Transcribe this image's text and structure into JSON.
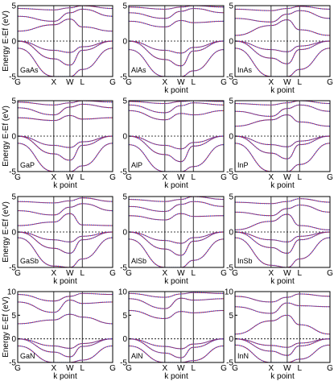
{
  "chart_data": [
    {
      "type": "line",
      "panel_label": "GaAs",
      "xlabel": "",
      "ylabel": "Energy E-Ef (eV)",
      "ylim": [
        -5,
        5
      ],
      "yticks": [
        "-5",
        "0",
        "5"
      ],
      "kpoints": [
        "G",
        "X",
        "W",
        "L",
        "G"
      ],
      "kbreaks": [
        0,
        0.38,
        0.55,
        0.68,
        1
      ],
      "series": [
        {
          "style": "dotted",
          "color": "#2050ff"
        },
        {
          "style": "solid",
          "color": "#cc2020"
        }
      ],
      "bands": [
        {
          "y": [
            -1,
            -5,
            -5,
            -4,
            -1
          ]
        },
        {
          "y": [
            0,
            -2.5,
            -3.4,
            -1.3,
            0
          ]
        },
        {
          "y": [
            0,
            -1.3,
            -1.6,
            -0.8,
            0
          ]
        },
        {
          "y": [
            1.4,
            2.3,
            3.1,
            2.0,
            1.4
          ]
        },
        {
          "y": [
            3.5,
            2.8,
            4.0,
            4.5,
            3.5
          ]
        },
        {
          "y": [
            4.6,
            4.4,
            4.7,
            5.0,
            4.6
          ]
        }
      ]
    },
    {
      "type": "line",
      "panel_label": "AlAs",
      "xlabel": "k point",
      "ylabel": "",
      "ylim": [
        -5,
        5
      ],
      "yticks": [
        "-5",
        "0",
        "5"
      ],
      "kpoints": [
        "G",
        "X",
        "W",
        "L",
        "G"
      ],
      "kbreaks": [
        0,
        0.38,
        0.55,
        0.68,
        1
      ],
      "series": [
        {
          "style": "dotted",
          "color": "#2050ff"
        },
        {
          "style": "solid",
          "color": "#cc2020"
        }
      ],
      "bands": [
        {
          "y": [
            -1.2,
            -5,
            -5,
            -4.2,
            -1.2
          ]
        },
        {
          "y": [
            0,
            -2.6,
            -3.5,
            -1.4,
            0
          ]
        },
        {
          "y": [
            0,
            -1.3,
            -1.7,
            -0.9,
            0
          ]
        },
        {
          "y": [
            2.8,
            2.0,
            2.9,
            2.6,
            2.8
          ]
        },
        {
          "y": [
            4.0,
            3.2,
            4.2,
            4.6,
            4.0
          ]
        },
        {
          "y": [
            4.8,
            4.5,
            4.8,
            5.0,
            4.8
          ]
        }
      ]
    },
    {
      "type": "line",
      "panel_label": "InAs",
      "xlabel": "k point",
      "ylabel": "",
      "ylim": [
        -5,
        5
      ],
      "yticks": [
        "-5",
        "0",
        "5"
      ],
      "kpoints": [
        "G",
        "X",
        "W",
        "L",
        "G"
      ],
      "kbreaks": [
        0,
        0.38,
        0.55,
        0.68,
        1
      ],
      "series": [
        {
          "style": "dotted",
          "color": "#2050ff"
        },
        {
          "style": "solid",
          "color": "#cc2020"
        }
      ],
      "bands": [
        {
          "y": [
            -1,
            -5,
            -5,
            -4,
            -1
          ]
        },
        {
          "y": [
            0,
            -2.4,
            -3.2,
            -1.2,
            0
          ]
        },
        {
          "y": [
            0,
            -1.2,
            -1.5,
            -0.7,
            0
          ]
        },
        {
          "y": [
            0.8,
            2.2,
            3.0,
            1.6,
            0.8
          ]
        },
        {
          "y": [
            3.2,
            2.7,
            3.8,
            4.3,
            3.2
          ]
        },
        {
          "y": [
            4.5,
            4.3,
            4.6,
            4.9,
            4.5
          ]
        }
      ]
    },
    {
      "type": "line",
      "panel_label": "GaP",
      "xlabel": "k point",
      "ylabel": "Energy E-Ef (eV)",
      "ylim": [
        -5,
        5
      ],
      "yticks": [
        "-5",
        "0",
        "5"
      ],
      "kpoints": [
        "G",
        "X",
        "W",
        "L",
        "G"
      ],
      "kbreaks": [
        0,
        0.38,
        0.55,
        0.68,
        1
      ],
      "series": [
        {
          "style": "dotted",
          "color": "#2050ff"
        },
        {
          "style": "solid",
          "color": "#cc2020"
        }
      ],
      "bands": [
        {
          "y": [
            -1,
            -5,
            -5,
            -4.2,
            -1
          ]
        },
        {
          "y": [
            0,
            -2.5,
            -3.4,
            -1.3,
            0
          ]
        },
        {
          "y": [
            0,
            -1.3,
            -1.6,
            -0.8,
            0
          ]
        },
        {
          "y": [
            2.6,
            2.2,
            2.9,
            2.4,
            2.6
          ]
        },
        {
          "y": [
            4.0,
            3.0,
            4.1,
            4.5,
            4.0
          ]
        },
        {
          "y": [
            4.8,
            4.4,
            4.7,
            5.0,
            4.8
          ]
        }
      ]
    },
    {
      "type": "line",
      "panel_label": "AlP",
      "xlabel": "k point",
      "ylabel": "",
      "ylim": [
        -5,
        5
      ],
      "yticks": [
        "-5",
        "0",
        "5"
      ],
      "kpoints": [
        "G",
        "X",
        "W",
        "L",
        "G"
      ],
      "kbreaks": [
        0,
        0.38,
        0.55,
        0.68,
        1
      ],
      "series": [
        {
          "style": "dotted",
          "color": "#2050ff"
        },
        {
          "style": "solid",
          "color": "#cc2020"
        }
      ],
      "bands": [
        {
          "y": [
            -1.2,
            -5,
            -5,
            -4.3,
            -1.2
          ]
        },
        {
          "y": [
            0,
            -2.6,
            -3.6,
            -1.4,
            0
          ]
        },
        {
          "y": [
            0,
            -1.3,
            -1.8,
            -0.9,
            0
          ]
        },
        {
          "y": [
            3.6,
            2.3,
            3.2,
            3.0,
            3.6
          ]
        },
        {
          "y": [
            4.4,
            3.3,
            4.3,
            4.7,
            4.4
          ]
        },
        {
          "y": [
            4.9,
            4.6,
            4.9,
            5.0,
            4.9
          ]
        }
      ]
    },
    {
      "type": "line",
      "panel_label": "InP",
      "xlabel": "k point",
      "ylabel": "",
      "ylim": [
        -5,
        5
      ],
      "yticks": [
        "-5",
        "0",
        "5"
      ],
      "kpoints": [
        "G",
        "X",
        "W",
        "L",
        "G"
      ],
      "kbreaks": [
        0,
        0.38,
        0.55,
        0.68,
        1
      ],
      "series": [
        {
          "style": "dotted",
          "color": "#2050ff"
        },
        {
          "style": "solid",
          "color": "#cc2020"
        }
      ],
      "bands": [
        {
          "y": [
            -1,
            -5,
            -5,
            -4,
            -1
          ]
        },
        {
          "y": [
            0,
            -2.4,
            -3.2,
            -1.2,
            0
          ]
        },
        {
          "y": [
            0,
            -1.2,
            -1.5,
            -0.7,
            0
          ]
        },
        {
          "y": [
            1.4,
            2.3,
            3.0,
            2.0,
            1.4
          ]
        },
        {
          "y": [
            3.5,
            2.8,
            3.9,
            4.4,
            3.5
          ]
        },
        {
          "y": [
            4.6,
            4.4,
            4.7,
            5.0,
            4.6
          ]
        }
      ]
    },
    {
      "type": "line",
      "panel_label": "GaSb",
      "xlabel": "k point",
      "ylabel": "Energy E-Ef (eV)",
      "ylim": [
        -5,
        5
      ],
      "yticks": [
        "-5",
        "0",
        "5"
      ],
      "kpoints": [
        "G",
        "X",
        "W",
        "L",
        "G"
      ],
      "kbreaks": [
        0,
        0.38,
        0.55,
        0.68,
        1
      ],
      "series": [
        {
          "style": "dotted",
          "color": "#2050ff"
        },
        {
          "style": "solid",
          "color": "#cc2020"
        }
      ],
      "bands": [
        {
          "y": [
            -0.8,
            -4.8,
            -5,
            -3.8,
            -0.8
          ]
        },
        {
          "y": [
            0,
            -2.3,
            -3.0,
            -1.1,
            0
          ]
        },
        {
          "y": [
            0,
            -1.1,
            -1.4,
            -0.6,
            0
          ]
        },
        {
          "y": [
            0.9,
            1.4,
            2.6,
            1.0,
            0.9
          ]
        },
        {
          "y": [
            3.0,
            2.4,
            3.5,
            4.0,
            3.0
          ]
        },
        {
          "y": [
            4.3,
            4.1,
            4.4,
            4.8,
            4.3
          ]
        }
      ]
    },
    {
      "type": "line",
      "panel_label": "AlSb",
      "xlabel": "k point",
      "ylabel": "",
      "ylim": [
        -5,
        5
      ],
      "yticks": [
        "-5",
        "0",
        "5"
      ],
      "kpoints": [
        "G",
        "X",
        "W",
        "L",
        "G"
      ],
      "kbreaks": [
        0,
        0.38,
        0.55,
        0.68,
        1
      ],
      "series": [
        {
          "style": "dotted",
          "color": "#2050ff"
        },
        {
          "style": "solid",
          "color": "#cc2020"
        }
      ],
      "bands": [
        {
          "y": [
            -1,
            -5,
            -5,
            -4,
            -1
          ]
        },
        {
          "y": [
            0,
            -2.4,
            -3.3,
            -1.3,
            0
          ]
        },
        {
          "y": [
            0,
            -1.2,
            -1.6,
            -0.8,
            0
          ]
        },
        {
          "y": [
            2.3,
            1.7,
            2.6,
            2.2,
            2.3
          ]
        },
        {
          "y": [
            3.6,
            2.9,
            3.9,
            4.3,
            3.6
          ]
        },
        {
          "y": [
            4.6,
            4.3,
            4.6,
            5.0,
            4.6
          ]
        }
      ]
    },
    {
      "type": "line",
      "panel_label": "InSb",
      "xlabel": "k point",
      "ylabel": "",
      "ylim": [
        -5,
        5
      ],
      "yticks": [
        "-5",
        "0",
        "5"
      ],
      "kpoints": [
        "G",
        "X",
        "W",
        "L",
        "G"
      ],
      "kbreaks": [
        0,
        0.38,
        0.55,
        0.68,
        1
      ],
      "series": [
        {
          "style": "dotted",
          "color": "#2050ff"
        },
        {
          "style": "solid",
          "color": "#cc2020"
        }
      ],
      "bands": [
        {
          "y": [
            -0.8,
            -4.7,
            -5,
            -3.8,
            -0.8
          ]
        },
        {
          "y": [
            0,
            -2.2,
            -3.0,
            -1.1,
            0
          ]
        },
        {
          "y": [
            0,
            -1.1,
            -1.4,
            -0.6,
            0
          ]
        },
        {
          "y": [
            0.3,
            1.5,
            2.5,
            0.9,
            0.3
          ]
        },
        {
          "y": [
            2.8,
            2.3,
            3.3,
            3.8,
            2.8
          ]
        },
        {
          "y": [
            4.2,
            4.0,
            4.3,
            4.7,
            4.2
          ]
        }
      ]
    },
    {
      "type": "line",
      "panel_label": "GaN",
      "xlabel": "k point",
      "ylabel": "Energy E-Ef (eV)",
      "ylim": [
        -5,
        10
      ],
      "yticks": [
        "-5",
        "0",
        "5",
        "10"
      ],
      "kpoints": [
        "G",
        "X",
        "W",
        "L",
        "G"
      ],
      "kbreaks": [
        0,
        0.38,
        0.55,
        0.68,
        1
      ],
      "series": [
        {
          "style": "dotted",
          "color": "#2050ff"
        },
        {
          "style": "solid",
          "color": "#cc2020"
        }
      ],
      "bands": [
        {
          "y": [
            -1.5,
            -5,
            -5,
            -4.5,
            -1.5
          ]
        },
        {
          "y": [
            0,
            -2.8,
            -3.8,
            -1.6,
            0
          ]
        },
        {
          "y": [
            0,
            -1.5,
            -2.0,
            -1.0,
            0
          ]
        },
        {
          "y": [
            3.2,
            4.0,
            5.2,
            4.6,
            3.2
          ]
        },
        {
          "y": [
            7.8,
            5.6,
            8.2,
            7.5,
            7.8
          ]
        },
        {
          "y": [
            9.4,
            8.0,
            9.0,
            9.6,
            9.4
          ]
        }
      ]
    },
    {
      "type": "line",
      "panel_label": "AlN",
      "xlabel": "k point",
      "ylabel": "",
      "ylim": [
        -5,
        10
      ],
      "yticks": [
        "-5",
        "0",
        "5",
        "10"
      ],
      "kpoints": [
        "G",
        "X",
        "W",
        "L",
        "G"
      ],
      "kbreaks": [
        0,
        0.38,
        0.55,
        0.68,
        1
      ],
      "series": [
        {
          "style": "dotted",
          "color": "#2050ff"
        },
        {
          "style": "solid",
          "color": "#cc2020"
        }
      ],
      "bands": [
        {
          "y": [
            -1.5,
            -5,
            -5,
            -4.6,
            -1.5
          ]
        },
        {
          "y": [
            0,
            -3.0,
            -4.0,
            -1.8,
            0
          ]
        },
        {
          "y": [
            0,
            -1.6,
            -2.1,
            -1.1,
            0
          ]
        },
        {
          "y": [
            6.0,
            4.3,
            5.8,
            5.5,
            6.0
          ]
        },
        {
          "y": [
            8.5,
            6.4,
            8.6,
            8.2,
            8.5
          ]
        },
        {
          "y": [
            9.6,
            8.8,
            9.5,
            9.8,
            9.6
          ]
        }
      ]
    },
    {
      "type": "line",
      "panel_label": "InN",
      "xlabel": "k point",
      "ylabel": "",
      "ylim": [
        -5,
        10
      ],
      "yticks": [
        "-5",
        "0",
        "5",
        "10"
      ],
      "kpoints": [
        "G",
        "X",
        "W",
        "L",
        "G"
      ],
      "kbreaks": [
        0,
        0.38,
        0.55,
        0.68,
        1
      ],
      "series": [
        {
          "style": "dotted",
          "color": "#2050ff"
        },
        {
          "style": "solid",
          "color": "#cc2020"
        }
      ],
      "bands": [
        {
          "y": [
            -1.3,
            -5,
            -5,
            -4.3,
            -1.3
          ]
        },
        {
          "y": [
            0,
            -2.6,
            -3.5,
            -1.5,
            0
          ]
        },
        {
          "y": [
            0,
            -1.4,
            -1.8,
            -0.9,
            0
          ]
        },
        {
          "y": [
            1.0,
            3.8,
            5.0,
            3.0,
            1.0
          ]
        },
        {
          "y": [
            6.8,
            5.4,
            7.6,
            7.0,
            6.8
          ]
        },
        {
          "y": [
            9.0,
            7.8,
            8.8,
            9.5,
            9.0
          ]
        }
      ]
    }
  ]
}
